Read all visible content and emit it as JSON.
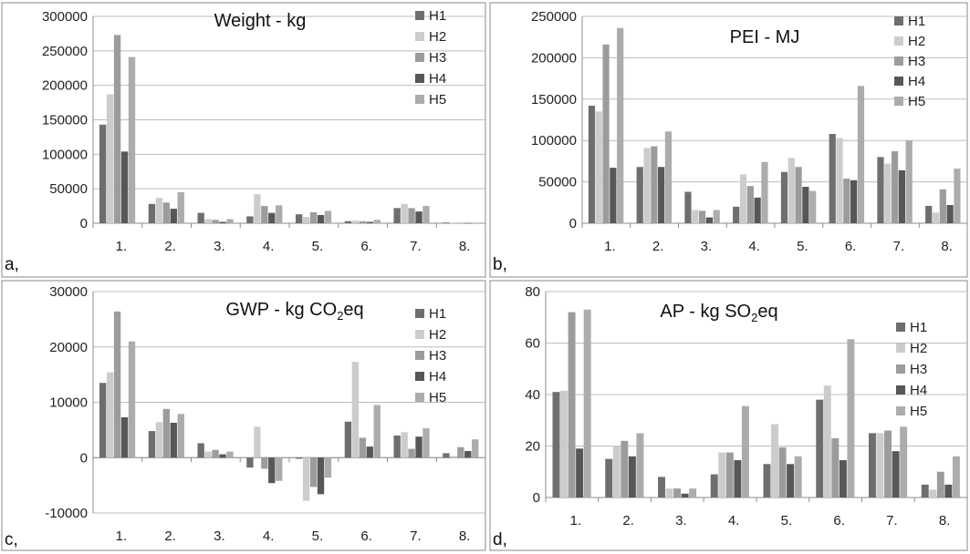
{
  "chart_data": [
    {
      "panel": "a,",
      "type": "bar",
      "title": "Weight - kg",
      "categories": [
        "1.",
        "2.",
        "3.",
        "4.",
        "5.",
        "6.",
        "7.",
        "8."
      ],
      "ylim": [
        0,
        300000
      ],
      "yticks": [
        "0",
        "50000",
        "100000",
        "150000",
        "200000",
        "250000",
        "300000"
      ],
      "grid": true,
      "legend": "right",
      "series": [
        {
          "name": "H1",
          "values": [
            143000,
            28000,
            15000,
            10000,
            13000,
            3000,
            22000,
            1000
          ]
        },
        {
          "name": "H2",
          "values": [
            187000,
            37000,
            6000,
            42000,
            9000,
            4000,
            28000,
            500
          ]
        },
        {
          "name": "H3",
          "values": [
            273000,
            30000,
            5000,
            25000,
            16000,
            3000,
            22000,
            500
          ]
        },
        {
          "name": "H4",
          "values": [
            104000,
            21000,
            2000,
            15000,
            12000,
            2000,
            17000,
            300
          ]
        },
        {
          "name": "H5",
          "values": [
            241000,
            45000,
            6000,
            26000,
            18000,
            5000,
            25000,
            500
          ]
        }
      ]
    },
    {
      "panel": "b,",
      "type": "bar",
      "title": "PEI - MJ",
      "categories": [
        "1.",
        "2.",
        "3.",
        "4.",
        "5.",
        "6.",
        "7.",
        "8."
      ],
      "ylim": [
        0,
        250000
      ],
      "yticks": [
        "0",
        "50000",
        "100000",
        "150000",
        "200000",
        "250000"
      ],
      "grid": true,
      "legend": "right",
      "series": [
        {
          "name": "H1",
          "values": [
            142000,
            68000,
            38000,
            20000,
            62000,
            108000,
            80000,
            21000
          ]
        },
        {
          "name": "H2",
          "values": [
            135000,
            91000,
            16000,
            59000,
            79000,
            103000,
            72000,
            13000
          ]
        },
        {
          "name": "H3",
          "values": [
            216000,
            93000,
            15000,
            45000,
            68000,
            54000,
            87000,
            41000
          ]
        },
        {
          "name": "H4",
          "values": [
            67000,
            68000,
            7000,
            31000,
            44000,
            52000,
            64000,
            22000
          ]
        },
        {
          "name": "H5",
          "values": [
            236000,
            111000,
            16000,
            74000,
            39000,
            166000,
            100000,
            66000
          ]
        }
      ]
    },
    {
      "panel": "c,",
      "type": "bar",
      "title": "GWP - kg CO",
      "title_sub": "2",
      "title_end": "eq",
      "categories": [
        "1.",
        "2.",
        "3.",
        "4.",
        "5.",
        "6.",
        "7.",
        "8."
      ],
      "ylim": [
        -10000,
        30000
      ],
      "yticks": [
        "-10000",
        "0",
        "10000",
        "20000",
        "30000"
      ],
      "grid": true,
      "legend": "right",
      "series": [
        {
          "name": "H1",
          "values": [
            13500,
            4800,
            2600,
            -1800,
            -200,
            6500,
            4000,
            800
          ]
        },
        {
          "name": "H2",
          "values": [
            15400,
            6400,
            1100,
            5600,
            -7800,
            17300,
            4600,
            300
          ]
        },
        {
          "name": "H3",
          "values": [
            26400,
            8800,
            1400,
            -2000,
            -5300,
            3600,
            1600,
            1900
          ]
        },
        {
          "name": "H4",
          "values": [
            7300,
            6300,
            600,
            -4600,
            -6600,
            2000,
            3800,
            1200
          ]
        },
        {
          "name": "H5",
          "values": [
            21000,
            7900,
            1100,
            -4200,
            -3600,
            9500,
            5300,
            3300
          ]
        }
      ]
    },
    {
      "panel": "d,",
      "type": "bar",
      "title": "AP - kg SO",
      "title_sub": "2",
      "title_end": "eq",
      "categories": [
        "1.",
        "2.",
        "3.",
        "4.",
        "5.",
        "6.",
        "7.",
        "8."
      ],
      "ylim": [
        0,
        80
      ],
      "yticks": [
        "0",
        "20",
        "40",
        "60",
        "80"
      ],
      "grid": true,
      "legend": "right",
      "series": [
        {
          "name": "H1",
          "values": [
            41,
            15,
            8,
            9,
            13,
            38,
            25,
            5
          ]
        },
        {
          "name": "H2",
          "values": [
            41.5,
            20,
            3.5,
            17.5,
            28.5,
            43.5,
            25,
            3
          ]
        },
        {
          "name": "H3",
          "values": [
            72,
            22,
            3.5,
            17.5,
            19.5,
            23,
            26,
            10
          ]
        },
        {
          "name": "H4",
          "values": [
            19,
            16,
            1.5,
            14.5,
            13,
            14.5,
            18,
            5
          ]
        },
        {
          "name": "H5",
          "values": [
            73,
            25,
            3.5,
            35.5,
            16,
            61.5,
            27.5,
            16
          ]
        }
      ]
    }
  ],
  "colors": {
    "H1": "#6e6e6e",
    "H2": "#cccccc",
    "H3": "#9c9c9c",
    "H4": "#575757",
    "H5": "#acacac",
    "grid": "#bdbdbd",
    "axis": "#8c8c8c",
    "frame": "#888888"
  }
}
